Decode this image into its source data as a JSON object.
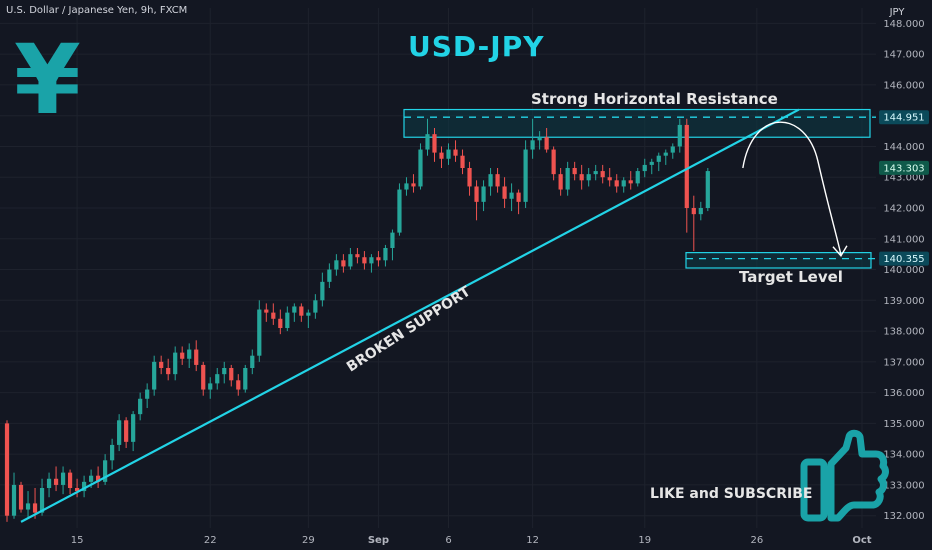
{
  "header": {
    "symbol_desc": "U.S. Dollar / Japanese Yen, 9h, FXCM",
    "title": "USD-JPY",
    "currency_axis_label": "JPY",
    "yen_glyph": "¥"
  },
  "annotations": {
    "resistance": "Strong Horizontal Resistance",
    "support": "BROKEN SUPPORT",
    "target": "Target Level",
    "cta": "LIKE and SUBSCRIBE"
  },
  "icons": {
    "logo": "yen-sign-icon",
    "cta": "thumbs-up-icon"
  },
  "colors": {
    "background": "#131722",
    "up": "#26a69a",
    "down": "#ef5350",
    "accent": "#22d3e6",
    "zone_fill": "#0d3a45",
    "text": "#d1d4dc"
  },
  "chart_data": {
    "type": "candlestick",
    "title": "U.S. Dollar / Japanese Yen, 9h, FXCM",
    "ylabel": "JPY",
    "ylim": [
      131.6,
      148.5
    ],
    "y_ticks": [
      "148.000",
      "147.000",
      "146.000",
      "145.000",
      "144.000",
      "143.000",
      "142.000",
      "141.000",
      "140.000",
      "139.000",
      "138.000",
      "137.000",
      "136.000",
      "135.000",
      "134.000",
      "133.000",
      "132.000"
    ],
    "x_ticks": [
      "15",
      "22",
      "29",
      "Sep",
      "6",
      "12",
      "19",
      "26",
      "Oct"
    ],
    "x_tick_index": [
      10,
      29,
      43,
      53,
      63,
      75,
      91,
      107,
      122
    ],
    "x_range": [
      -1,
      124
    ],
    "price_tags": [
      {
        "value": 144.951,
        "label": "144.951"
      },
      {
        "value": 143.303,
        "label": "143.303"
      },
      {
        "value": 140.355,
        "label": "140.355"
      }
    ],
    "resistance_zone": [
      144.3,
      145.2
    ],
    "resistance_level": 144.951,
    "target_zone": [
      140.05,
      140.55
    ],
    "target_level": 140.355,
    "support_line": {
      "from": [
        2,
        131.8
      ],
      "to": [
        113,
        145.2
      ]
    },
    "projection": {
      "from": [
        105,
        143.3
      ],
      "peak": [
        110,
        144.5
      ],
      "to": [
        119,
        140.35
      ]
    },
    "candles": [
      [
        135.0,
        135.1,
        131.8,
        132.0
      ],
      [
        132.0,
        133.4,
        131.9,
        133.0
      ],
      [
        133.0,
        133.1,
        132.1,
        132.2
      ],
      [
        132.2,
        132.8,
        131.9,
        132.4
      ],
      [
        132.4,
        132.9,
        131.9,
        132.1
      ],
      [
        132.1,
        133.2,
        132.0,
        132.9
      ],
      [
        132.9,
        133.4,
        132.6,
        133.2
      ],
      [
        133.2,
        133.6,
        132.8,
        133.0
      ],
      [
        133.0,
        133.6,
        132.7,
        133.4
      ],
      [
        133.4,
        133.5,
        132.7,
        132.9
      ],
      [
        132.9,
        133.2,
        132.6,
        132.8
      ],
      [
        132.8,
        133.3,
        132.6,
        133.1
      ],
      [
        133.1,
        133.5,
        132.9,
        133.3
      ],
      [
        133.3,
        133.6,
        132.9,
        133.1
      ],
      [
        133.1,
        134.0,
        133.0,
        133.8
      ],
      [
        133.8,
        134.5,
        133.5,
        134.3
      ],
      [
        134.3,
        135.3,
        134.1,
        135.1
      ],
      [
        135.1,
        135.2,
        134.2,
        134.4
      ],
      [
        134.4,
        135.4,
        134.1,
        135.3
      ],
      [
        135.3,
        136.0,
        135.1,
        135.8
      ],
      [
        135.8,
        136.3,
        135.5,
        136.1
      ],
      [
        136.1,
        137.2,
        135.9,
        137.0
      ],
      [
        137.0,
        137.2,
        136.6,
        136.8
      ],
      [
        136.8,
        137.1,
        136.4,
        136.6
      ],
      [
        136.6,
        137.5,
        136.4,
        137.3
      ],
      [
        137.3,
        137.5,
        136.9,
        137.1
      ],
      [
        137.1,
        137.6,
        136.8,
        137.4
      ],
      [
        137.4,
        137.7,
        136.7,
        136.9
      ],
      [
        136.9,
        137.0,
        135.9,
        136.1
      ],
      [
        136.1,
        136.5,
        135.8,
        136.3
      ],
      [
        136.3,
        136.8,
        136.1,
        136.6
      ],
      [
        136.6,
        137.0,
        136.3,
        136.8
      ],
      [
        136.8,
        136.9,
        136.2,
        136.4
      ],
      [
        136.4,
        136.6,
        135.9,
        136.1
      ],
      [
        136.1,
        136.9,
        136.0,
        136.8
      ],
      [
        136.8,
        137.4,
        136.6,
        137.2
      ],
      [
        137.2,
        139.0,
        137.0,
        138.7
      ],
      [
        138.7,
        138.9,
        138.3,
        138.6
      ],
      [
        138.6,
        138.9,
        138.2,
        138.4
      ],
      [
        138.4,
        138.7,
        137.9,
        138.1
      ],
      [
        138.1,
        138.8,
        138.0,
        138.6
      ],
      [
        138.6,
        138.9,
        138.3,
        138.8
      ],
      [
        138.8,
        138.9,
        138.3,
        138.5
      ],
      [
        138.5,
        138.7,
        138.1,
        138.6
      ],
      [
        138.6,
        139.2,
        138.4,
        139.0
      ],
      [
        139.0,
        139.9,
        138.8,
        139.6
      ],
      [
        139.6,
        140.2,
        139.4,
        140.0
      ],
      [
        140.0,
        140.5,
        139.8,
        140.3
      ],
      [
        140.3,
        140.5,
        139.9,
        140.1
      ],
      [
        140.1,
        140.7,
        140.0,
        140.5
      ],
      [
        140.5,
        140.7,
        140.2,
        140.4
      ],
      [
        140.4,
        140.6,
        140.0,
        140.2
      ],
      [
        140.2,
        140.5,
        139.9,
        140.4
      ],
      [
        140.4,
        140.6,
        140.1,
        140.3
      ],
      [
        140.3,
        140.8,
        140.1,
        140.7
      ],
      [
        140.7,
        141.3,
        140.3,
        141.2
      ],
      [
        141.2,
        142.8,
        141.1,
        142.6
      ],
      [
        142.6,
        143.0,
        142.4,
        142.8
      ],
      [
        142.8,
        143.1,
        142.5,
        142.7
      ],
      [
        142.7,
        144.1,
        142.6,
        143.9
      ],
      [
        143.9,
        144.9,
        143.7,
        144.4
      ],
      [
        144.4,
        144.6,
        143.5,
        143.8
      ],
      [
        143.8,
        144.0,
        143.3,
        143.6
      ],
      [
        143.6,
        144.1,
        143.4,
        143.9
      ],
      [
        143.9,
        144.2,
        143.5,
        143.7
      ],
      [
        143.7,
        143.9,
        143.1,
        143.3
      ],
      [
        143.3,
        143.5,
        142.4,
        142.7
      ],
      [
        142.7,
        142.9,
        141.6,
        142.2
      ],
      [
        142.2,
        142.9,
        141.9,
        142.7
      ],
      [
        142.7,
        143.3,
        142.4,
        143.1
      ],
      [
        143.1,
        143.3,
        142.5,
        142.7
      ],
      [
        142.7,
        143.0,
        142.0,
        142.3
      ],
      [
        142.3,
        142.8,
        141.9,
        142.5
      ],
      [
        142.5,
        142.6,
        141.8,
        142.2
      ],
      [
        142.2,
        144.2,
        142.0,
        143.9
      ],
      [
        143.9,
        144.9,
        143.6,
        144.2
      ],
      [
        144.2,
        144.5,
        143.9,
        144.3
      ],
      [
        144.3,
        144.6,
        143.8,
        143.9
      ],
      [
        143.9,
        144.0,
        142.9,
        143.1
      ],
      [
        143.1,
        143.3,
        142.4,
        142.6
      ],
      [
        142.6,
        143.5,
        142.4,
        143.3
      ],
      [
        143.3,
        143.5,
        142.9,
        143.1
      ],
      [
        143.1,
        143.4,
        142.6,
        142.9
      ],
      [
        142.9,
        143.3,
        142.7,
        143.1
      ],
      [
        143.1,
        143.4,
        142.9,
        143.2
      ],
      [
        143.2,
        143.4,
        142.8,
        143.0
      ],
      [
        143.0,
        143.3,
        142.7,
        142.9
      ],
      [
        142.9,
        143.1,
        142.5,
        142.7
      ],
      [
        142.7,
        143.0,
        142.5,
        142.9
      ],
      [
        142.9,
        143.2,
        142.6,
        142.8
      ],
      [
        142.8,
        143.3,
        142.7,
        143.2
      ],
      [
        143.2,
        143.6,
        143.0,
        143.4
      ],
      [
        143.4,
        143.6,
        143.1,
        143.5
      ],
      [
        143.5,
        143.8,
        143.2,
        143.7
      ],
      [
        143.7,
        143.9,
        143.4,
        143.8
      ],
      [
        143.8,
        144.1,
        143.6,
        144.0
      ],
      [
        144.0,
        144.9,
        143.8,
        144.7
      ],
      [
        144.7,
        144.9,
        141.2,
        142.0
      ],
      [
        142.0,
        142.4,
        140.6,
        141.8
      ],
      [
        141.8,
        142.2,
        141.6,
        142.0
      ],
      [
        142.0,
        143.3,
        141.9,
        143.2
      ]
    ]
  }
}
